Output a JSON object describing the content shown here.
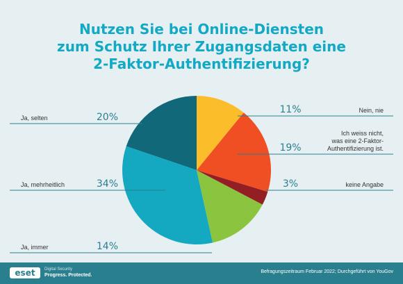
{
  "title_lines": [
    "Nutzen Sie bei Online-Diensten",
    "zum Schutz Ihrer Zugangsdaten eine",
    "2-Faktor-Authentifizierung?"
  ],
  "footer": {
    "logo": "eset",
    "logo_tagline1": "Digital Security",
    "logo_tagline2": "Progress. Protected.",
    "source": "Befragungszeitraum Februar 2022; Durchgeführt von YouGov"
  },
  "chart_data": {
    "type": "pie",
    "start_angle_deg": 90,
    "direction": "counterclockwise",
    "slices": [
      {
        "label": "Ja, selten",
        "value": 20,
        "value_label": "20%",
        "color": "#116878"
      },
      {
        "label": "Ja, mehrheitlich",
        "value": 34,
        "value_label": "34%",
        "color": "#14a9c1"
      },
      {
        "label": "Ja, immer",
        "value": 14,
        "value_label": "14%",
        "color": "#8bc43f"
      },
      {
        "label": "keine Angabe",
        "value": 3,
        "value_label": "3%",
        "color": "#931f25"
      },
      {
        "label": "Ich weiss nicht, was eine 2-Faktor-Authentifizierung ist.",
        "label_lines": [
          "Ich weiss nicht,",
          "was eine 2-Faktor-",
          "Authentifizierung ist."
        ],
        "value": 19,
        "value_label": "19%",
        "color": "#f04e23"
      },
      {
        "label": "Nein, nie",
        "value": 11,
        "value_label": "11%",
        "color": "#fbbd2a"
      }
    ]
  }
}
